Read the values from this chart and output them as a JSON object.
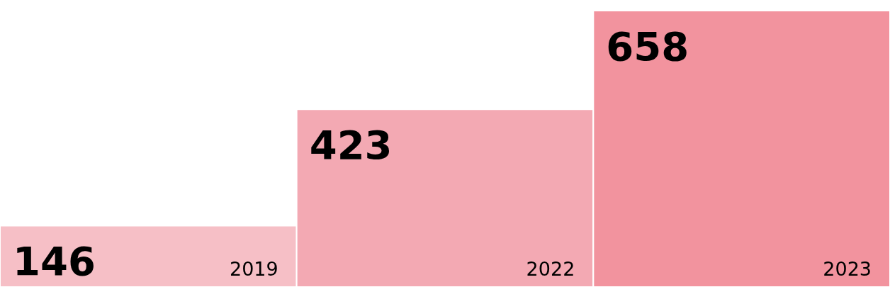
{
  "chart_data": {
    "type": "bar",
    "categories": [
      "2019",
      "2022",
      "2023"
    ],
    "values": [
      146,
      423,
      658
    ],
    "colors": [
      "#f6bfc6",
      "#f3a9b3",
      "#f2939e"
    ],
    "data_labels": true
  }
}
